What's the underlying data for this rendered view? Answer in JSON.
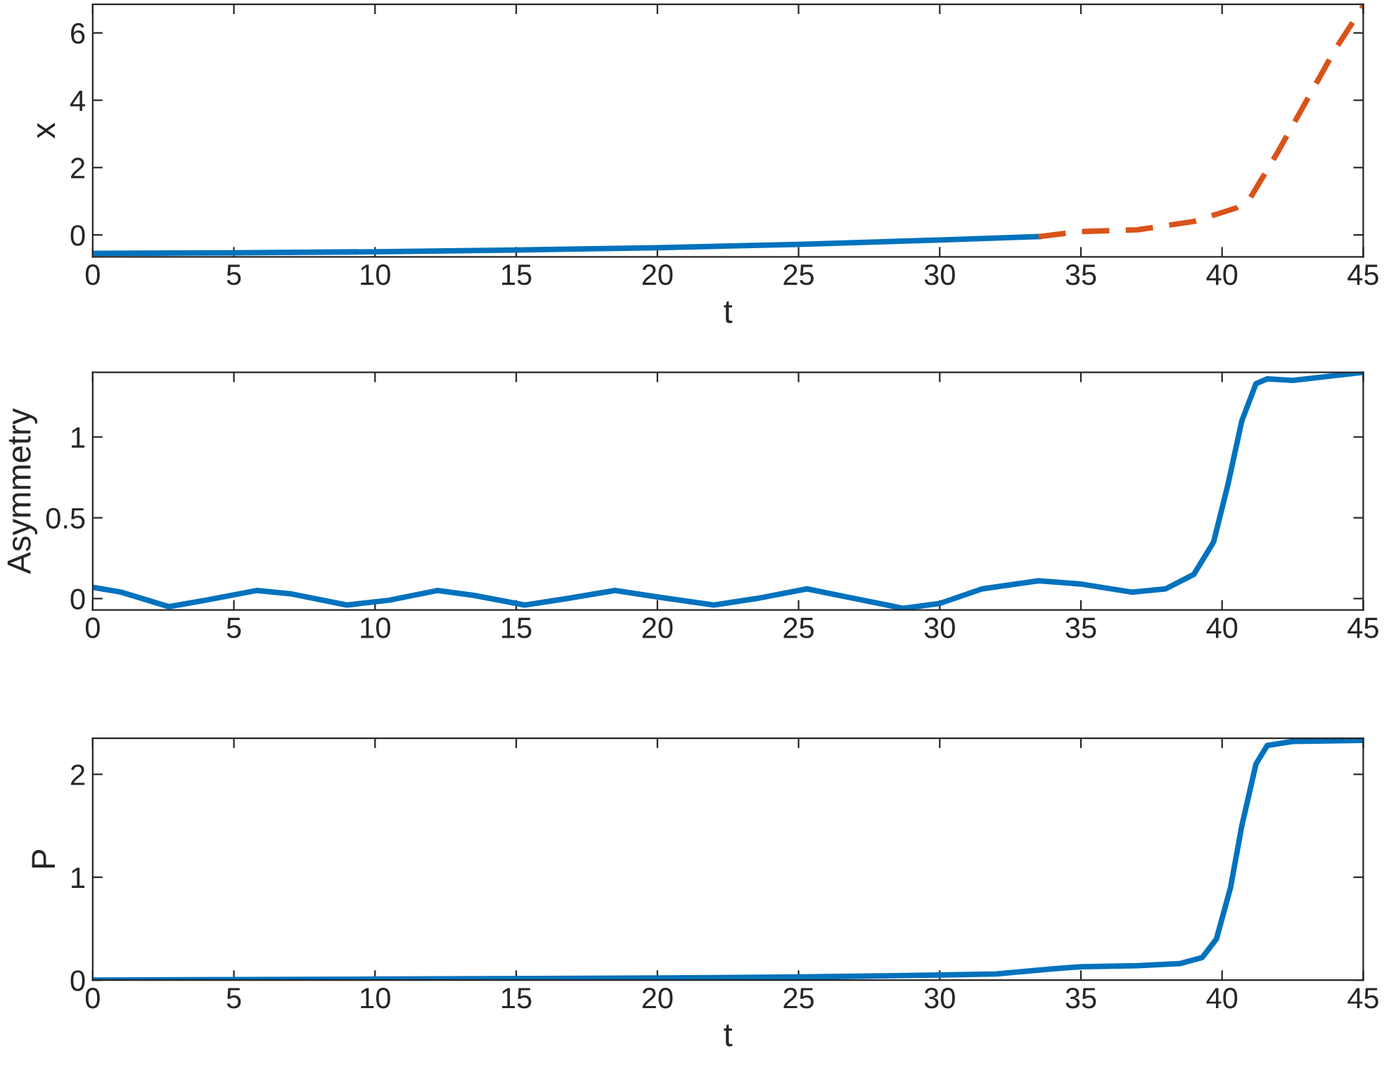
{
  "chart_data": [
    {
      "type": "line",
      "xlabel": "t",
      "ylabel": "x",
      "xlim": [
        0,
        45
      ],
      "xticks": [
        0,
        5,
        10,
        15,
        20,
        25,
        30,
        35,
        40,
        45
      ],
      "ylim": [
        -0.65,
        6.85
      ],
      "yticks": [
        0,
        2,
        4,
        6
      ],
      "grid": false,
      "legend": false,
      "series": [
        {
          "color": "#0072bd",
          "line_style": "solid",
          "x": [
            0,
            5,
            10,
            15,
            20,
            25,
            30,
            33.5
          ],
          "values": [
            -0.55,
            -0.53,
            -0.5,
            -0.45,
            -0.38,
            -0.28,
            -0.15,
            -0.05
          ]
        },
        {
          "color": "#d95319",
          "line_style": "dashed",
          "x": [
            33.5,
            35,
            37,
            39,
            40.5,
            41,
            42,
            43,
            44,
            45
          ],
          "values": [
            -0.05,
            0.1,
            0.15,
            0.4,
            0.8,
            1.1,
            2.5,
            4,
            5.5,
            6.8
          ]
        }
      ]
    },
    {
      "type": "line",
      "ylabel": "Asymmetry",
      "xlim": [
        0,
        45
      ],
      "xticks": [
        0,
        5,
        10,
        15,
        20,
        25,
        30,
        35,
        40,
        45
      ],
      "ylim": [
        -0.07,
        1.4
      ],
      "yticks": [
        0,
        0.5,
        1
      ],
      "grid": false,
      "legend": false,
      "series": [
        {
          "color": "#0072bd",
          "line_style": "solid",
          "x": [
            0,
            1,
            2.7,
            4,
            5.8,
            7,
            9,
            10.5,
            12.2,
            13.5,
            15.3,
            16.8,
            18.5,
            20,
            22,
            23.5,
            25.3,
            27,
            28.7,
            30,
            31.5,
            33.5,
            35,
            36.8,
            38,
            39,
            39.7,
            40.2,
            40.7,
            41.2,
            41.6,
            42.5,
            44,
            45
          ],
          "values": [
            0.07,
            0.04,
            -0.05,
            -0.01,
            0.05,
            0.03,
            -0.04,
            -0.01,
            0.05,
            0.02,
            -0.04,
            0,
            0.05,
            0.01,
            -0.04,
            0,
            0.06,
            0,
            -0.06,
            -0.03,
            0.06,
            0.11,
            0.09,
            0.04,
            0.06,
            0.15,
            0.35,
            0.7,
            1.1,
            1.33,
            1.36,
            1.35,
            1.38,
            1.4
          ]
        }
      ]
    },
    {
      "type": "line",
      "xlabel": "t",
      "ylabel": "P",
      "xlim": [
        0,
        45
      ],
      "xticks": [
        0,
        5,
        10,
        15,
        20,
        25,
        30,
        35,
        40,
        45
      ],
      "ylim": [
        0,
        2.35
      ],
      "yticks": [
        0,
        1,
        2
      ],
      "grid": false,
      "legend": false,
      "series": [
        {
          "color": "#0072bd",
          "line_style": "solid",
          "x": [
            0,
            10,
            20,
            25,
            30,
            32,
            34,
            35,
            37,
            38.5,
            39.3,
            39.8,
            40.3,
            40.7,
            41.2,
            41.6,
            42.5,
            45
          ],
          "values": [
            0,
            0.01,
            0.02,
            0.03,
            0.05,
            0.06,
            0.11,
            0.13,
            0.14,
            0.16,
            0.22,
            0.4,
            0.9,
            1.5,
            2.1,
            2.28,
            2.32,
            2.33
          ]
        }
      ]
    }
  ]
}
